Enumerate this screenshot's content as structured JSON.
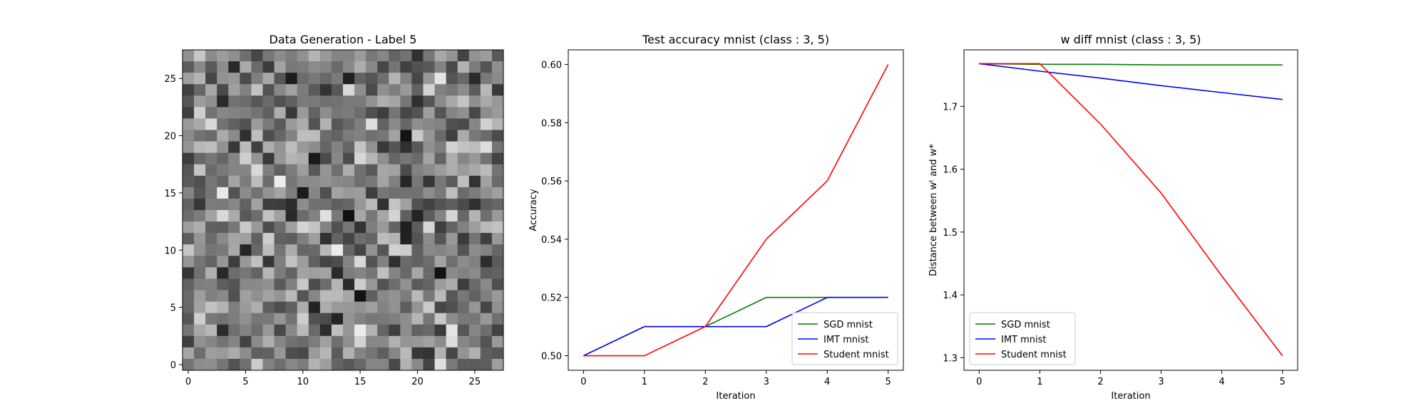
{
  "chart_data": [
    {
      "type": "heatmap",
      "title": "Data Generation - Label 5",
      "xlabel": "",
      "ylabel": "",
      "xlim": [
        -0.5,
        27.5
      ],
      "ylim": [
        27.5,
        -0.5
      ],
      "xticks": [
        0,
        5,
        10,
        15,
        20,
        25
      ],
      "yticks": [
        0,
        5,
        10,
        15,
        20,
        25
      ],
      "rows": 28,
      "cols": 28,
      "colormap": "gray"
    },
    {
      "type": "line",
      "title": "Test accuracy mnist (class : 3, 5)",
      "xlabel": "Iteration",
      "ylabel": "Accuracy",
      "xlim": [
        -0.25,
        5.25
      ],
      "ylim": [
        0.495,
        0.605
      ],
      "xticks": [
        0,
        1,
        2,
        3,
        4,
        5
      ],
      "yticks": [
        0.5,
        0.52,
        0.54,
        0.56,
        0.58,
        0.6
      ],
      "ytick_labels": [
        "0.50",
        "0.52",
        "0.54",
        "0.56",
        "0.58",
        "0.60"
      ],
      "x": [
        0,
        1,
        2,
        3,
        4,
        5
      ],
      "legend_position": "bottom-right",
      "series": [
        {
          "name": "SGD mnist",
          "color": "#008000",
          "values": [
            0.5,
            0.51,
            0.51,
            0.52,
            0.52,
            0.52
          ]
        },
        {
          "name": "IMT mnist",
          "color": "#0000ff",
          "values": [
            0.5,
            0.51,
            0.51,
            0.51,
            0.52,
            0.52
          ]
        },
        {
          "name": "Student mnist",
          "color": "#ff0000",
          "values": [
            0.5,
            0.5,
            0.51,
            0.54,
            0.56,
            0.6
          ]
        }
      ]
    },
    {
      "type": "line",
      "title": "w diff mnist (class : 3, 5)",
      "xlabel": "Iteration",
      "ylabel": "Distance between wᵗ and w*",
      "xlim": [
        -0.25,
        5.25
      ],
      "ylim": [
        1.28,
        1.79
      ],
      "xticks": [
        0,
        1,
        2,
        3,
        4,
        5
      ],
      "yticks": [
        1.3,
        1.4,
        1.5,
        1.6,
        1.7
      ],
      "ytick_labels": [
        "1.3",
        "1.4",
        "1.5",
        "1.6",
        "1.7"
      ],
      "x": [
        0,
        1,
        2,
        3,
        4,
        5
      ],
      "legend_position": "bottom-left",
      "series": [
        {
          "name": "SGD mnist",
          "color": "#008000",
          "values": [
            1.768,
            1.767,
            1.767,
            1.766,
            1.766,
            1.766
          ]
        },
        {
          "name": "IMT mnist",
          "color": "#0000ff",
          "values": [
            1.768,
            1.756,
            1.745,
            1.733,
            1.722,
            1.711
          ]
        },
        {
          "name": "Student mnist",
          "color": "#ff0000",
          "values": [
            1.768,
            1.768,
            1.672,
            1.562,
            1.43,
            1.303
          ]
        }
      ]
    }
  ]
}
